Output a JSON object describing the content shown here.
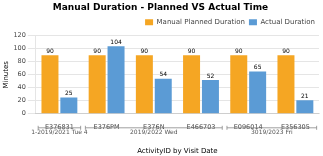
{
  "chart_data": {
    "type": "bar",
    "title": "Manual Duration - Planned VS Actual Time",
    "xlabel": "ActivityID by Visit Date",
    "ylabel": "Minutes",
    "categories": [
      "E376831",
      "E376PM",
      "E376N",
      "E466703",
      "E096014",
      "E356305"
    ],
    "series": [
      {
        "name": "Manual Planned Duration",
        "color": "#F5A623",
        "values": [
          90,
          90,
          90,
          90,
          90,
          90
        ]
      },
      {
        "name": "Actual Duration",
        "color": "#5B9BD5",
        "values": [
          25,
          104,
          54,
          52,
          65,
          21
        ]
      }
    ],
    "ylim": [
      0,
      120
    ],
    "yticks": [
      0,
      20,
      40,
      60,
      80,
      100,
      120
    ],
    "grid": true,
    "legend": "upper right",
    "data_labels": true,
    "annotations": [
      {
        "text": "1-2019/2021 Tue 4",
        "from": "E376831",
        "to": "E376831"
      },
      {
        "text": "2019/2022 Wed",
        "from": "E376PM",
        "to": "E466703"
      },
      {
        "text": "3019/2023 Fri",
        "from": "E096014",
        "to": "E356305"
      }
    ]
  }
}
